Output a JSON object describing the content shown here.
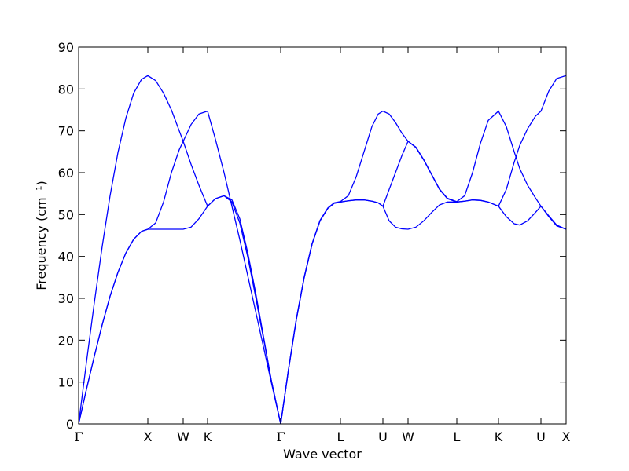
{
  "chart_data": {
    "type": "line",
    "xlabel": "Wave vector",
    "ylabel": "Frequency (cm⁻¹)",
    "xlim": [
      0,
      6.2
    ],
    "ylim": [
      0,
      90
    ],
    "xticks": [
      {
        "value": 0,
        "label": "Γ"
      },
      {
        "value": 0.88,
        "label": "X"
      },
      {
        "value": 1.33,
        "label": "W"
      },
      {
        "value": 1.64,
        "label": "K"
      },
      {
        "value": 2.57,
        "label": "Γ"
      },
      {
        "value": 3.33,
        "label": "L"
      },
      {
        "value": 3.87,
        "label": "U"
      },
      {
        "value": 4.19,
        "label": "W"
      },
      {
        "value": 4.81,
        "label": "L"
      },
      {
        "value": 5.34,
        "label": "K"
      },
      {
        "value": 5.88,
        "label": "U"
      },
      {
        "value": 6.2,
        "label": "X"
      }
    ],
    "yticks": [
      0,
      10,
      20,
      30,
      40,
      50,
      60,
      70,
      80,
      90
    ],
    "x": [
      0,
      0.1,
      0.2,
      0.3,
      0.4,
      0.5,
      0.6,
      0.7,
      0.8,
      0.88,
      0.98,
      1.08,
      1.18,
      1.28,
      1.33,
      1.43,
      1.53,
      1.64,
      1.74,
      1.85,
      1.95,
      2.05,
      2.15,
      2.25,
      2.35,
      2.45,
      2.57,
      2.67,
      2.77,
      2.87,
      2.97,
      3.07,
      3.17,
      3.25,
      3.33,
      3.43,
      3.53,
      3.63,
      3.73,
      3.81,
      3.87,
      3.95,
      4.03,
      4.11,
      4.19,
      4.29,
      4.39,
      4.49,
      4.59,
      4.69,
      4.81,
      4.91,
      5.01,
      5.11,
      5.21,
      5.34,
      5.44,
      5.54,
      5.61,
      5.71,
      5.81,
      5.88,
      5.98,
      6.08,
      6.2
    ],
    "series": [
      {
        "color": "#0000ff",
        "values": [
          0,
          14.8,
          29.0,
          42.4,
          54.5,
          64.8,
          73.0,
          79.0,
          82.3,
          83.2,
          82,
          79,
          75,
          70,
          67.5,
          62,
          57,
          52,
          53.8,
          54.5,
          53.5,
          49,
          41,
          31.5,
          21,
          10.5,
          0,
          13,
          25,
          35,
          43,
          48.5,
          51.5,
          52.7,
          53,
          53.3,
          53.5,
          53.5,
          53.2,
          52.8,
          52,
          56,
          60,
          64,
          67.5,
          66,
          63,
          59.5,
          56,
          53.8,
          53,
          53.2,
          53.5,
          53.4,
          53,
          52,
          49.5,
          47.8,
          47.5,
          48.5,
          50.5,
          52,
          49.5,
          47.3,
          46.5
        ]
      },
      {
        "color": "#0000ff",
        "values": [
          0,
          8.3,
          16.2,
          23.7,
          30.5,
          36.2,
          40.8,
          44.1,
          46.0,
          46.5,
          48,
          53,
          60,
          65.5,
          67.5,
          71.5,
          74,
          74.7,
          68,
          60,
          52,
          44,
          35.5,
          27,
          18.5,
          10,
          0,
          13.2,
          25.2,
          35.2,
          43.1,
          48.6,
          51.6,
          52.8,
          53.1,
          54.5,
          59,
          65,
          71,
          74,
          74.7,
          74,
          72,
          69.5,
          67.5,
          66.1,
          63.1,
          59.6,
          56.1,
          53.9,
          53.1,
          54.5,
          60,
          67,
          72.5,
          74.7,
          71,
          65,
          61,
          57,
          54,
          52,
          49.7,
          47.5,
          46.5
        ]
      },
      {
        "color": "#0000ff",
        "values": [
          0,
          8.3,
          16.2,
          23.7,
          30.5,
          36.2,
          40.8,
          44.1,
          46.0,
          46.5,
          46.5,
          46.5,
          46.5,
          46.5,
          46.5,
          47,
          49,
          52,
          53.8,
          54.5,
          53,
          48,
          40,
          30.5,
          20.5,
          10.5,
          0,
          13,
          25,
          35,
          43,
          48.5,
          51.5,
          52.7,
          53,
          53.3,
          53.5,
          53.5,
          53.2,
          52.8,
          52,
          48.5,
          47,
          46.6,
          46.5,
          47,
          48.5,
          50.5,
          52.3,
          53,
          53,
          53.2,
          53.5,
          53.4,
          53,
          52,
          56,
          62.5,
          66.5,
          70.5,
          73.5,
          74.7,
          79.5,
          82.5,
          83.2
        ]
      }
    ]
  }
}
